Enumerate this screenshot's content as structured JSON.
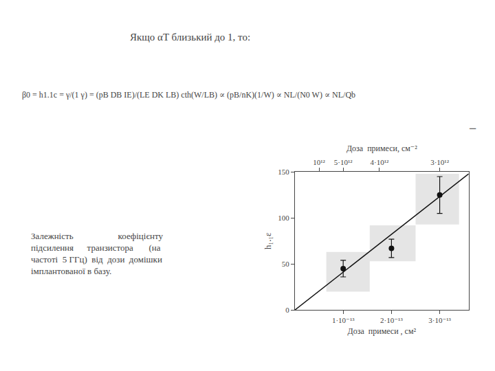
{
  "chart_data": {
    "type": "scatter",
    "title": "Якщо αT близький до 1, то:",
    "formula": "β0 = h1.1c = γ/(1 γ) = (pB DB IE)/(LE DK LB) cth(W/LB) ∝ (pB/nK)(1/W) ∝ NL/(N0 W) ∝ NL/Qb",
    "caption": [
      "Залежність                    коефіцієнту",
      "підсилення      транзистора       (на",
      "частоті  5 ГГц)  від  дози  домішки",
      "імплантованої в базу."
    ],
    "annotations": [
      "─"
    ],
    "x": [
      1e-13,
      2e-13,
      3e-13
    ],
    "values": [
      45,
      67,
      125
    ],
    "errors": [
      9,
      10,
      20
    ],
    "color": "#111111",
    "marker": "circle",
    "line": {
      "x": [
        0.0,
        3.6e-13
      ],
      "values": [
        0,
        148
      ],
      "color": "#111111"
    },
    "shade_boxes": [
      {
        "x0": 6.5e-14,
        "x1": 1.55e-13,
        "y0": 20,
        "y1": 63
      },
      {
        "x0": 1.55e-13,
        "x1": 2.5e-13,
        "y0": 53,
        "y1": 92
      },
      {
        "x0": 2.5e-13,
        "x1": 3.4e-13,
        "y0": 93,
        "y1": 148
      }
    ],
    "shade_color": "#cccccc",
    "xlabel": "Доза  примеси , см²",
    "x2label": "Доза  примеси, см⁻²",
    "ylabel": "h₁.₁ε",
    "xlim": [
      0,
      3.6e-13
    ],
    "xticks": [
      {
        "value": 1e-13,
        "label": "1·10⁻¹³"
      },
      {
        "value": 2e-13,
        "label": "2·10⁻¹³"
      },
      {
        "value": 3e-13,
        "label": "3·10⁻¹³"
      }
    ],
    "x2lim": [
      0,
      3.6e-13
    ],
    "x2ticks": [
      {
        "value": 5e-14,
        "label": "10¹²"
      },
      {
        "value": 1e-13,
        "label": "5·10¹²"
      },
      {
        "value": 1.75e-13,
        "label": "4·10¹²"
      },
      {
        "value": 3e-13,
        "label": "3·10¹²"
      }
    ],
    "ylim": [
      0,
      150
    ],
    "yticks": [
      0,
      50,
      100,
      150
    ],
    "grid": false
  }
}
